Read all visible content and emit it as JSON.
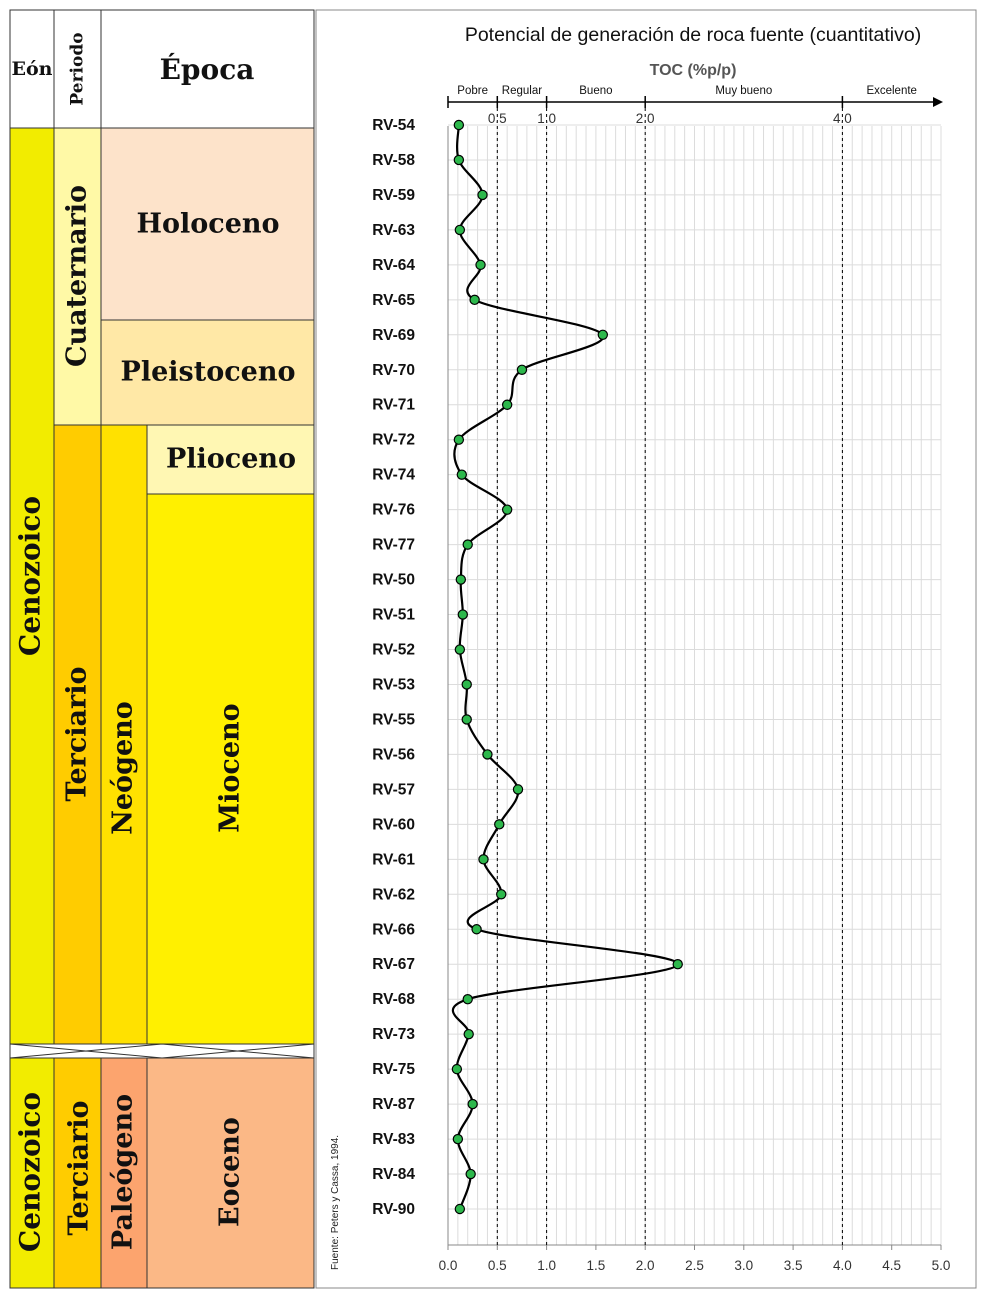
{
  "strat": {
    "header": {
      "eon": "Eón",
      "periodo": "Periodo",
      "epoca": "Época"
    },
    "upper": {
      "eon": "Cenozoico",
      "cuaternario": "Cuaternario",
      "terciario": "Terciario",
      "neogeno": "Neógeno",
      "holoceno": "Holoceno",
      "pleistoceno": "Pleistoceno",
      "plioceno": "Plioceno",
      "mioceno": "Mioceno"
    },
    "lower": {
      "eon": "Cenozoico",
      "terciario": "Terciario",
      "paleogeno": "Paleógeno",
      "eoceno": "Eoceno"
    },
    "colors": {
      "eon": "#F2EC00",
      "cuaternario": "#FFF9A6",
      "terciario": "#FFCC00",
      "neogeno": "#FFE100",
      "holoceno": "#FDE3CA",
      "pleistoceno": "#FFE8A6",
      "plioceno": "#FFF7B3",
      "mioceno": "#FFF000",
      "paleogeno": "#FCA46E",
      "eoceno": "#FBB886"
    }
  },
  "source": "Fuente: Peters y Cassa, 1994.",
  "chart_data": {
    "type": "line",
    "title": "Potencial de generación de roca fuente (cuantitativo)",
    "xlabel": "TOC (%p/p)",
    "xlim": [
      0,
      5
    ],
    "x_ticks": [
      "0.0",
      "0.5",
      "1.0",
      "1.5",
      "2.0",
      "2.5",
      "3.0",
      "3.5",
      "4.0",
      "4.5",
      "5.0"
    ],
    "threshold_lines": [
      0.5,
      1.0,
      2.0,
      4.0
    ],
    "threshold_labels": [
      "0.5",
      "1.0",
      "2.0",
      "4.0"
    ],
    "classes": [
      {
        "label": "Pobre",
        "from": 0,
        "to": 0.5
      },
      {
        "label": "Regular",
        "from": 0.5,
        "to": 1.0
      },
      {
        "label": "Bueno",
        "from": 1.0,
        "to": 2.0
      },
      {
        "label": "Muy bueno",
        "from": 2.0,
        "to": 4.0
      },
      {
        "label": "Excelente",
        "from": 4.0,
        "to": 5.0
      }
    ],
    "grid": true,
    "series": [
      {
        "color": "#2DB84C",
        "line_color": "#000000",
        "samples": [
          "RV-54",
          "RV-58",
          "RV-59",
          "RV-63",
          "RV-64",
          "RV-65",
          "RV-69",
          "RV-70",
          "RV-71",
          "RV-72",
          "RV-74",
          "RV-76",
          "RV-77",
          "RV-50",
          "RV-51",
          "RV-52",
          "RV-53",
          "RV-55",
          "RV-56",
          "RV-57",
          "RV-60",
          "RV-61",
          "RV-62",
          "RV-66",
          "RV-67",
          "RV-68",
          "RV-73",
          "RV-75",
          "RV-87",
          "RV-83",
          "RV-84",
          "RV-90"
        ],
        "values": [
          0.11,
          0.11,
          0.35,
          0.12,
          0.33,
          0.27,
          1.57,
          0.75,
          0.6,
          0.11,
          0.14,
          0.6,
          0.2,
          0.13,
          0.15,
          0.12,
          0.19,
          0.19,
          0.4,
          0.71,
          0.52,
          0.36,
          0.54,
          0.29,
          2.33,
          0.2,
          0.21,
          0.09,
          0.25,
          0.1,
          0.23,
          0.12
        ]
      }
    ]
  }
}
